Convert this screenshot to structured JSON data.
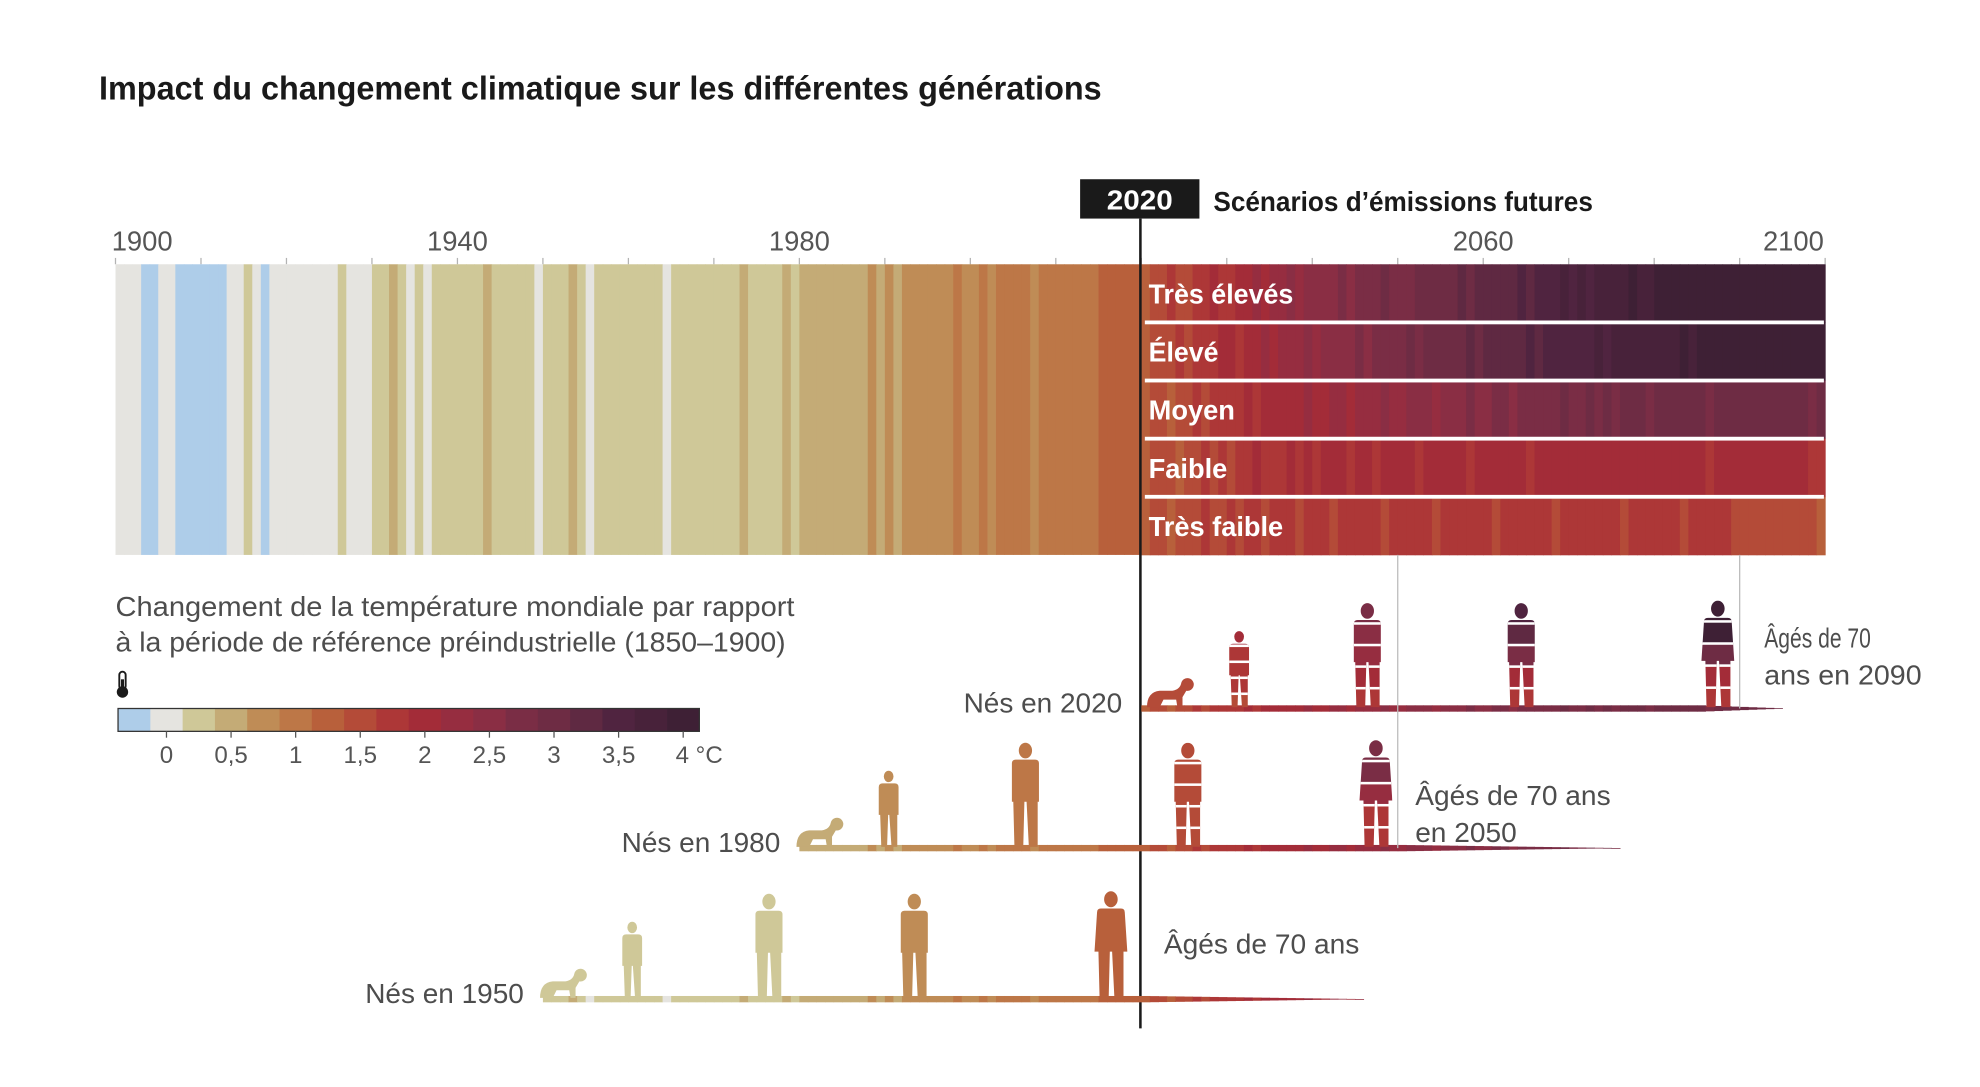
{
  "title": "Impact du changement climatique sur les différentes générations",
  "marker": {
    "year_label": "2020",
    "scenarios_heading": "Scénarios d’émissions futures"
  },
  "legend": {
    "line1": "Changement de la température mondiale par rapport",
    "line2": "à la période de référence préindustrielle (1850–1900)",
    "icon": "thermometer-icon",
    "tick_labels": [
      "0",
      "0,5",
      "1",
      "1,5",
      "2",
      "2,5",
      "3",
      "3,5",
      "4 °C"
    ],
    "colors": [
      "#aecde9",
      "#e5e4e0",
      "#cfc898",
      "#c4ab76",
      "#bf8c56",
      "#bd7747",
      "#b8603b",
      "#b44b38",
      "#ad3737",
      "#a32c38",
      "#962d40",
      "#8a2e44",
      "#7a2d45",
      "#6e2c44",
      "#5f2942",
      "#502440",
      "#48223a",
      "#3e2035"
    ]
  },
  "chart_data": {
    "type": "heatmap",
    "title": "Impact du changement climatique sur les différentes générations",
    "x_axis": {
      "range": [
        1900,
        2100
      ],
      "tick_labels": [
        "1900",
        "1940",
        "1980",
        "2060",
        "2100"
      ]
    },
    "value_unit": "°C",
    "legend_range": [
      -0.25,
      4
    ],
    "historical": {
      "start_year": 1900,
      "values": [
        0,
        0,
        0,
        -0.25,
        -0.25,
        0,
        0,
        -0.25,
        -0.25,
        -0.25,
        -0.25,
        -0.25,
        -0.25,
        0,
        0,
        0.25,
        0,
        -0.25,
        0,
        0,
        0,
        0,
        0,
        0,
        0,
        0,
        0.25,
        0,
        0,
        0,
        0.25,
        0.25,
        0.5,
        0.25,
        0,
        0.25,
        0,
        0.25,
        0.25,
        0.25,
        0.25,
        0.25,
        0.25,
        0.5,
        0.25,
        0.25,
        0.25,
        0.25,
        0.25,
        0,
        0.25,
        0.25,
        0.25,
        0.5,
        0.25,
        0,
        0.25,
        0.25,
        0.25,
        0.25,
        0.25,
        0.25,
        0.25,
        0.25,
        0,
        0.25,
        0.25,
        0.25,
        0.25,
        0.25,
        0.25,
        0.25,
        0.25,
        0.5,
        0.25,
        0.25,
        0.25,
        0.25,
        0.5,
        0.25,
        0.5,
        0.5,
        0.5,
        0.5,
        0.5,
        0.5,
        0.5,
        0.5,
        0.75,
        0.5,
        0.75,
        0.5,
        0.75,
        0.75,
        0.75,
        0.75,
        0.75,
        0.75,
        1,
        0.75,
        0.75,
        1,
        0.75,
        1,
        1,
        1,
        1,
        0.75,
        1,
        1,
        1,
        1,
        1,
        1,
        1,
        1.25,
        1.25,
        1.25,
        1.25,
        1.25
      ]
    },
    "scenarios": [
      {
        "name": "Très élevés",
        "start_year": 2020,
        "values": [
          1.25,
          1.5,
          1.5,
          1.75,
          1.5,
          1.5,
          1.75,
          1.75,
          2,
          1.75,
          1.75,
          2,
          2,
          2.25,
          2,
          2.25,
          2.25,
          2.5,
          2.25,
          2.5,
          2.5,
          2.5,
          2.5,
          2.75,
          2.5,
          2.75,
          2.75,
          2.75,
          3,
          2.75,
          2.75,
          2.75,
          3,
          3,
          3,
          3,
          3,
          3.25,
          3,
          3.25,
          3.25,
          3.25,
          3.25,
          3.25,
          3.5,
          3.25,
          3.5,
          3.5,
          3.5,
          3.75,
          3.5,
          3.75,
          3.5,
          3.75,
          3.75,
          3.75,
          3.75,
          4,
          3.75,
          3.75,
          4,
          4,
          4,
          4,
          4,
          4,
          4,
          4,
          4,
          4,
          4,
          4,
          4,
          4,
          4,
          4,
          4,
          4,
          4,
          4
        ]
      },
      {
        "name": "Élevé",
        "start_year": 2020,
        "values": [
          1.25,
          1.5,
          1.5,
          1.5,
          1.75,
          1.5,
          1.75,
          1.75,
          1.75,
          2,
          2,
          1.75,
          2,
          2,
          2.25,
          2,
          2.25,
          2.25,
          2.25,
          2.5,
          2.25,
          2.5,
          2.5,
          2.5,
          2.5,
          2.75,
          2.5,
          2.75,
          2.75,
          2.75,
          2.75,
          3,
          2.75,
          3,
          3,
          3,
          3,
          3,
          3.25,
          3,
          3.25,
          3.25,
          3.25,
          3.25,
          3.25,
          3.5,
          3.25,
          3.5,
          3.5,
          3.5,
          3.5,
          3.5,
          3.5,
          3.75,
          3.5,
          3.75,
          3.75,
          3.75,
          3.75,
          3.75,
          3.75,
          3.75,
          3.75,
          4,
          3.75,
          4,
          4,
          4,
          4,
          4,
          4,
          4,
          4,
          4,
          4,
          4,
          4,
          4,
          4,
          4
        ]
      },
      {
        "name": "Moyen",
        "start_year": 2020,
        "values": [
          1.25,
          1.5,
          1.5,
          1.25,
          1.5,
          1.5,
          1.75,
          1.5,
          1.75,
          1.75,
          1.75,
          1.75,
          2,
          1.75,
          2,
          2,
          2,
          2,
          2,
          2.25,
          2,
          2,
          2.25,
          2.25,
          2,
          2.25,
          2.25,
          2.25,
          2.5,
          2.25,
          2.25,
          2.5,
          2.5,
          2.5,
          2.25,
          2.5,
          2.5,
          2.5,
          2.75,
          2.5,
          2.5,
          2.75,
          2.75,
          2.5,
          2.75,
          2.75,
          2.75,
          2.75,
          2.75,
          3,
          2.75,
          2.75,
          3,
          2.75,
          3,
          2.75,
          3,
          3,
          3,
          2.75,
          3,
          3,
          3,
          3,
          3,
          3,
          2.75,
          3,
          3,
          3,
          3,
          3,
          3,
          3,
          3,
          3,
          3,
          3,
          2.75,
          3
        ]
      },
      {
        "name": "Faible",
        "start_year": 2020,
        "values": [
          1.25,
          1.5,
          1.5,
          1.5,
          1.25,
          1.5,
          1.5,
          1.75,
          1.5,
          1.75,
          1.5,
          1.75,
          1.75,
          2,
          1.75,
          1.75,
          1.75,
          2,
          1.75,
          2,
          1.75,
          2,
          2,
          2,
          1.75,
          2,
          2,
          1.75,
          2,
          2,
          2,
          2,
          1.75,
          2,
          2,
          2,
          2,
          2,
          1.75,
          2,
          2,
          2,
          2,
          2,
          2,
          1.75,
          2,
          2,
          2,
          2,
          2,
          2,
          2,
          2,
          2,
          2,
          2,
          2,
          2,
          2,
          2,
          2,
          2,
          2,
          2,
          2,
          1.75,
          2,
          2,
          2,
          2,
          2,
          2,
          2,
          2,
          2,
          2,
          2,
          1.75,
          1.75
        ]
      },
      {
        "name": "Très faible",
        "start_year": 2020,
        "values": [
          1.25,
          1.5,
          1.5,
          1.25,
          1.5,
          1.5,
          1.5,
          1.75,
          1.5,
          1.5,
          1.75,
          1.5,
          1.75,
          1.75,
          1.5,
          1.75,
          1.75,
          1.75,
          1.5,
          1.75,
          1.75,
          1.75,
          1.5,
          1.75,
          1.75,
          1.75,
          1.75,
          1.75,
          1.5,
          1.75,
          1.75,
          1.75,
          1.75,
          1.75,
          1.5,
          1.75,
          1.75,
          1.75,
          1.75,
          1.75,
          1.75,
          1.5,
          1.75,
          1.75,
          1.75,
          1.75,
          1.75,
          1.75,
          1.5,
          1.75,
          1.75,
          1.75,
          1.75,
          1.75,
          1.75,
          1.75,
          1.5,
          1.75,
          1.75,
          1.75,
          1.75,
          1.75,
          1.75,
          1.5,
          1.75,
          1.75,
          1.75,
          1.75,
          1.75,
          1.5,
          1.5,
          1.5,
          1.5,
          1.5,
          1.5,
          1.5,
          1.5,
          1.5,
          1.5,
          1.25
        ]
      }
    ],
    "generations": [
      {
        "label": "Nés en 2020",
        "birth_year": 2020,
        "age70_label": [
          "Âgés de 70",
          "ans en 2090"
        ],
        "figures": [
          {
            "year": 2022,
            "stage": "baby"
          },
          {
            "year": 2031,
            "stage": "child"
          },
          {
            "year": 2046,
            "stage": "adult"
          },
          {
            "year": 2064,
            "stage": "adult"
          },
          {
            "year": 2087,
            "stage": "elder"
          }
        ]
      },
      {
        "label": "Nés en 1980",
        "birth_year": 1980,
        "age70_label": [
          "Âgés de 70 ans",
          "en 2050"
        ],
        "figures": [
          {
            "year": 1981,
            "stage": "baby"
          },
          {
            "year": 1990,
            "stage": "child"
          },
          {
            "year": 2006,
            "stage": "adult"
          },
          {
            "year": 2025,
            "stage": "adult"
          },
          {
            "year": 2047,
            "stage": "elder"
          }
        ]
      },
      {
        "label": "Nés en 1950",
        "birth_year": 1950,
        "age70_label": [
          "Âgés de 70 ans"
        ],
        "figures": [
          {
            "year": 1951,
            "stage": "baby"
          },
          {
            "year": 1960,
            "stage": "child"
          },
          {
            "year": 1976,
            "stage": "adult"
          },
          {
            "year": 1993,
            "stage": "adult"
          },
          {
            "year": 2016,
            "stage": "elder"
          }
        ]
      }
    ]
  }
}
